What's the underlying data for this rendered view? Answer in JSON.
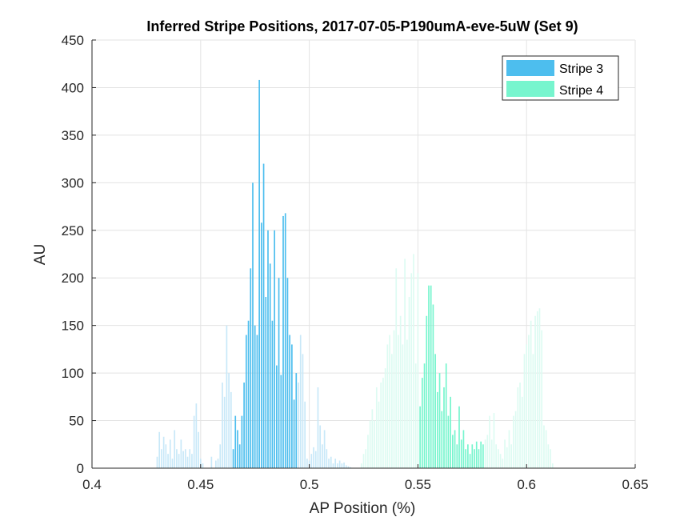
{
  "chart_data": {
    "type": "bar",
    "title": "Inferred Stripe Positions, 2017-07-05-P190umA-eve-5uW (Set 9)",
    "xlabel": "AP Position (%)",
    "ylabel": "AU",
    "xlim": [
      0.4,
      0.65
    ],
    "ylim": [
      0,
      450
    ],
    "xticks": [
      "0.4",
      "0.45",
      "0.5",
      "0.55",
      "0.6",
      "0.65"
    ],
    "yticks": [
      "0",
      "50",
      "100",
      "150",
      "200",
      "250",
      "300",
      "350",
      "400",
      "450"
    ],
    "grid": true,
    "legend": {
      "location": "top-right",
      "entries": [
        "Stripe 3",
        "Stripe 4"
      ]
    },
    "series": [
      {
        "name": "Stripe 3",
        "color": "#4DBEEE",
        "x": [
          0.465,
          0.466,
          0.467,
          0.468,
          0.469,
          0.47,
          0.471,
          0.472,
          0.473,
          0.474,
          0.475,
          0.476,
          0.477,
          0.478,
          0.479,
          0.48,
          0.481,
          0.482,
          0.483,
          0.484,
          0.485,
          0.486,
          0.487,
          0.488,
          0.489,
          0.49,
          0.491,
          0.492,
          0.493,
          0.494
        ],
        "values": [
          20,
          55,
          40,
          25,
          55,
          90,
          140,
          155,
          210,
          300,
          150,
          140,
          408,
          258,
          320,
          180,
          250,
          215,
          155,
          250,
          108,
          200,
          98,
          265,
          268,
          200,
          140,
          130,
          72,
          100
        ]
      },
      {
        "name": "Stripe 4",
        "color": "#77F5CE",
        "x": [
          0.551,
          0.552,
          0.553,
          0.554,
          0.555,
          0.556,
          0.557,
          0.558,
          0.559,
          0.56,
          0.561,
          0.562,
          0.563,
          0.564,
          0.565,
          0.566,
          0.567,
          0.568,
          0.569,
          0.57,
          0.571,
          0.572,
          0.573,
          0.574,
          0.575,
          0.576,
          0.577,
          0.578,
          0.579,
          0.58
        ],
        "values": [
          65,
          95,
          110,
          160,
          192,
          192,
          172,
          120,
          80,
          100,
          60,
          85,
          110,
          55,
          75,
          35,
          40,
          25,
          65,
          30,
          40,
          20,
          25,
          15,
          25,
          20,
          28,
          20,
          28,
          25
        ]
      }
    ],
    "faded_series": [
      {
        "color": "#C8E8F8",
        "x": [
          0.43,
          0.431,
          0.432,
          0.433,
          0.434,
          0.435,
          0.436,
          0.437,
          0.438,
          0.439,
          0.44,
          0.441,
          0.442,
          0.443,
          0.444,
          0.445,
          0.446,
          0.447,
          0.448,
          0.449,
          0.45,
          0.451,
          0.455,
          0.457,
          0.458,
          0.459,
          0.46,
          0.461,
          0.462,
          0.463,
          0.464,
          0.495,
          0.496,
          0.497,
          0.498,
          0.499,
          0.5,
          0.501,
          0.502,
          0.503,
          0.504,
          0.505,
          0.506,
          0.507,
          0.508,
          0.509,
          0.51,
          0.511,
          0.512,
          0.513,
          0.514,
          0.515,
          0.516,
          0.517,
          0.518,
          0.519
        ],
        "values": [
          12,
          38,
          20,
          33,
          25,
          15,
          30,
          10,
          40,
          20,
          15,
          30,
          18,
          20,
          12,
          20,
          15,
          55,
          68,
          38,
          10,
          5,
          12,
          8,
          10,
          25,
          90,
          75,
          150,
          100,
          80,
          90,
          140,
          120,
          70,
          10,
          8,
          15,
          22,
          18,
          85,
          45,
          25,
          40,
          20,
          10,
          12,
          5,
          10,
          5,
          8,
          5,
          6,
          3,
          2,
          1
        ]
      },
      {
        "color": "#DDFBF2",
        "x": [
          0.524,
          0.525,
          0.526,
          0.527,
          0.528,
          0.529,
          0.53,
          0.531,
          0.532,
          0.533,
          0.534,
          0.535,
          0.536,
          0.537,
          0.538,
          0.539,
          0.54,
          0.541,
          0.542,
          0.543,
          0.544,
          0.545,
          0.546,
          0.547,
          0.548,
          0.549,
          0.55,
          0.581,
          0.582,
          0.583,
          0.584,
          0.585,
          0.586,
          0.587,
          0.588,
          0.589,
          0.59,
          0.591,
          0.592,
          0.593,
          0.594,
          0.595,
          0.596,
          0.597,
          0.598,
          0.599,
          0.6,
          0.601,
          0.602,
          0.603,
          0.604,
          0.605,
          0.606,
          0.607,
          0.608,
          0.609,
          0.61,
          0.611,
          0.612
        ],
        "values": [
          5,
          15,
          20,
          35,
          50,
          62,
          50,
          85,
          70,
          90,
          95,
          105,
          130,
          140,
          120,
          145,
          210,
          140,
          160,
          130,
          220,
          135,
          180,
          205,
          225,
          110,
          205,
          30,
          35,
          55,
          30,
          58,
          25,
          20,
          15,
          10,
          30,
          22,
          40,
          25,
          55,
          60,
          85,
          90,
          75,
          120,
          130,
          140,
          155,
          120,
          160,
          165,
          168,
          145,
          45,
          40,
          25,
          20,
          5
        ]
      }
    ]
  }
}
